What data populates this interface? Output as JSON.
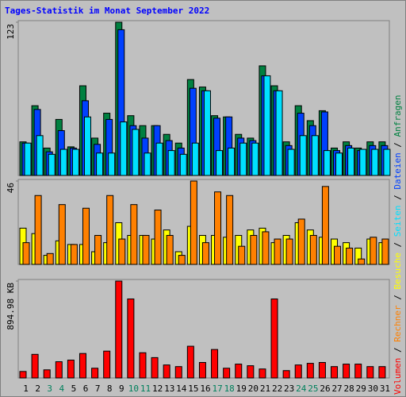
{
  "title": "Tages-Statistik im Monat September 2022",
  "legend_separator": " / ",
  "chart_data": [
    {
      "type": "bar",
      "ylim": [
        0,
        123
      ],
      "yticks": [
        123
      ],
      "series": [
        {
          "name": "Anfragen",
          "color": "#008040",
          "values": [
            27,
            56,
            22,
            45,
            23,
            72,
            30,
            50,
            123,
            48,
            40,
            40,
            33,
            26,
            77,
            71,
            48,
            47,
            33,
            30,
            88,
            72,
            27,
            56,
            44,
            52,
            22,
            27,
            22,
            27,
            27
          ]
        },
        {
          "name": "Dateien",
          "color": "#0040ff",
          "values": [
            26,
            53,
            19,
            36,
            22,
            60,
            25,
            45,
            117,
            40,
            30,
            40,
            28,
            22,
            70,
            68,
            46,
            47,
            30,
            28,
            80,
            68,
            24,
            50,
            40,
            51,
            20,
            24,
            20,
            24,
            24
          ]
        },
        {
          "name": "Seiten",
          "color": "#00e0ff",
          "values": [
            26,
            32,
            17,
            21,
            21,
            47,
            18,
            18,
            43,
            37,
            18,
            26,
            20,
            17,
            26,
            68,
            20,
            22,
            26,
            26,
            80,
            68,
            21,
            32,
            32,
            20,
            18,
            22,
            21,
            21,
            21
          ]
        }
      ]
    },
    {
      "type": "bar",
      "ylim": [
        0,
        46
      ],
      "yticks": [
        46
      ],
      "series": [
        {
          "name": "Besuche",
          "color": "#ffff00",
          "values": [
            20,
            17,
            5,
            13,
            11,
            11,
            7,
            12,
            23,
            16,
            16,
            14,
            19,
            7,
            21,
            16,
            16,
            15,
            16,
            19,
            20,
            12,
            16,
            23,
            19,
            15,
            14,
            12,
            9,
            14,
            12
          ]
        },
        {
          "name": "Rechner",
          "color": "#ff8000",
          "values": [
            12,
            38,
            6,
            33,
            11,
            31,
            16,
            38,
            14,
            33,
            16,
            30,
            16,
            5,
            46,
            12,
            40,
            38,
            10,
            16,
            18,
            14,
            14,
            25,
            16,
            43,
            10,
            9,
            3,
            15,
            14
          ]
        }
      ]
    },
    {
      "type": "bar",
      "ylim": [
        0,
        894.98
      ],
      "yticks": [
        {
          "value": 894.98,
          "label": "894.98 KB"
        }
      ],
      "categories": [
        "1",
        "2",
        "3",
        "4",
        "5",
        "6",
        "7",
        "8",
        "9",
        "10",
        "11",
        "12",
        "13",
        "14",
        "15",
        "16",
        "17",
        "18",
        "19",
        "20",
        "21",
        "22",
        "23",
        "24",
        "25",
        "26",
        "27",
        "28",
        "29",
        "30",
        "31"
      ],
      "weekend": [
        false,
        false,
        true,
        true,
        false,
        false,
        false,
        false,
        false,
        true,
        true,
        false,
        false,
        false,
        false,
        false,
        true,
        true,
        false,
        false,
        false,
        false,
        false,
        true,
        true,
        false,
        false,
        false,
        false,
        false,
        false
      ],
      "label_color": "#000000",
      "weekend_color": "#00805c",
      "series": [
        {
          "name": "Volumen",
          "color": "#ff0000",
          "values": [
            60,
            218,
            75,
            150,
            165,
            226,
            90,
            248,
            894.98,
            730,
            233,
            188,
            120,
            105,
            293,
            143,
            263,
            90,
            128,
            113,
            83,
            730,
            68,
            120,
            135,
            143,
            105,
            128,
            128,
            105,
            105
          ]
        }
      ]
    }
  ]
}
